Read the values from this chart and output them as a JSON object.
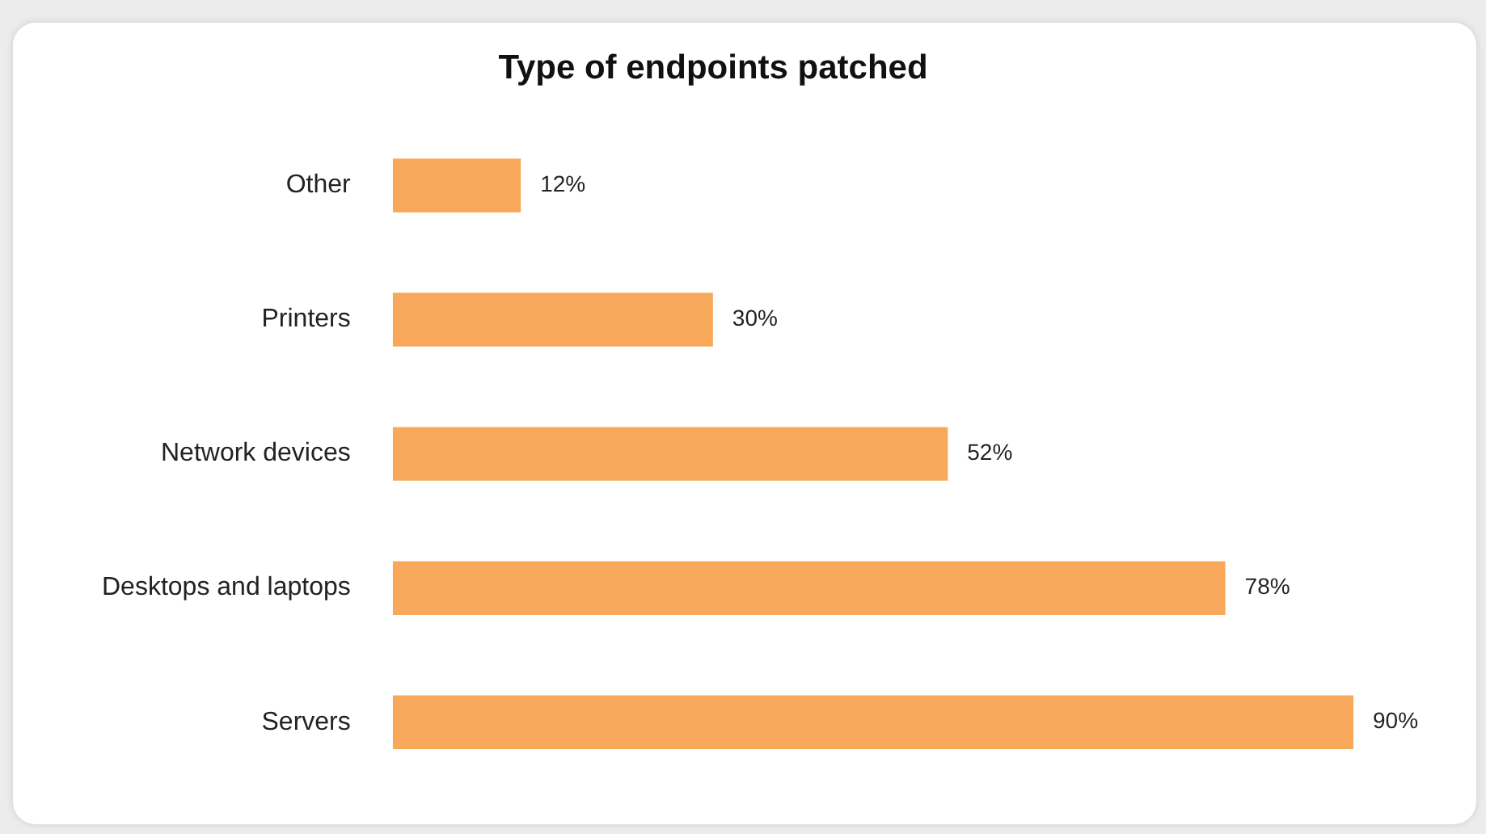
{
  "chart_data": {
    "type": "bar",
    "orientation": "horizontal",
    "title": "Type of endpoints patched",
    "categories": [
      "Other",
      "Printers",
      "Network devices",
      "Desktops and laptops",
      "Servers"
    ],
    "values": [
      12,
      30,
      52,
      78,
      90
    ],
    "color": "#f7a85a",
    "value_labels": [
      "12%",
      "30%",
      "52%",
      "78%",
      "90%"
    ],
    "grid": false,
    "legend": false,
    "tick_labels": "y"
  }
}
